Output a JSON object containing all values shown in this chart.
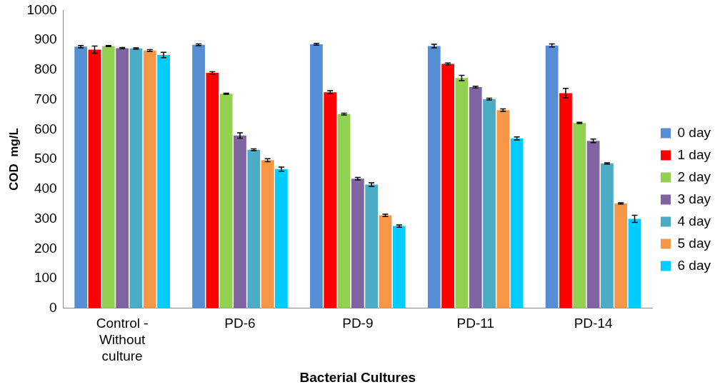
{
  "chart_data": {
    "type": "bar",
    "xlabel": "Bacterial Cultures",
    "ylabel": "COD  mg/L",
    "categories": [
      "Control - Without culture",
      "PD-6",
      "PD-9",
      "PD-11",
      "PD-14"
    ],
    "series": [
      {
        "name": "0 day",
        "color": "#558ed5",
        "values": [
          878,
          884,
          886,
          880,
          882
        ],
        "errors": [
          4,
          3,
          3,
          6,
          5
        ]
      },
      {
        "name": "1 day",
        "color": "#ff0000",
        "values": [
          868,
          790,
          725,
          820,
          722
        ],
        "errors": [
          12,
          4,
          5,
          3,
          16
        ]
      },
      {
        "name": "2 day",
        "color": "#92d050",
        "values": [
          880,
          720,
          652,
          773,
          622
        ],
        "errors": [
          2,
          2,
          3,
          9,
          2
        ]
      },
      {
        "name": "3 day",
        "color": "#8064a2",
        "values": [
          873,
          580,
          435,
          742,
          562
        ],
        "errors": [
          2,
          9,
          4,
          3,
          6
        ]
      },
      {
        "name": "4 day",
        "color": "#4bacc6",
        "values": [
          872,
          532,
          415,
          702,
          486
        ],
        "errors": [
          2,
          3,
          6,
          3,
          2
        ]
      },
      {
        "name": "5 day",
        "color": "#f79646",
        "values": [
          865,
          497,
          312,
          665,
          352
        ],
        "errors": [
          3,
          5,
          4,
          4,
          2
        ]
      },
      {
        "name": "6 day",
        "color": "#00ccff",
        "values": [
          850,
          467,
          276,
          570,
          300
        ],
        "errors": [
          9,
          7,
          4,
          5,
          12
        ]
      }
    ],
    "ylim": [
      0,
      1000
    ],
    "yticks": [
      0,
      100,
      200,
      300,
      400,
      500,
      600,
      700,
      800,
      900,
      1000
    ],
    "grid": false,
    "legend": "right"
  }
}
